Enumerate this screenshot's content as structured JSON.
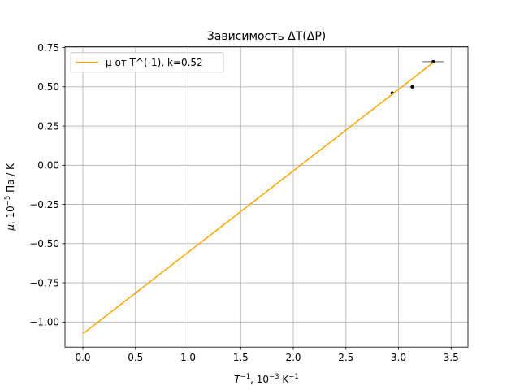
{
  "chart_data": {
    "type": "scatter",
    "title": "Зависимость ΔT(ΔP)",
    "xlabel": "",
    "ylabel": "",
    "xlabel_parts": {
      "t": "T",
      "t_sup": "−1",
      "mid": ", 10",
      "mid_sup": "−3",
      "unit": " K",
      "unit_sup": "−1"
    },
    "ylabel_parts": {
      "mu": "μ",
      "mid": ", 10",
      "mid_sup": "−5",
      "unit": " Па / K"
    },
    "xlim": [
      -0.17,
      3.66
    ],
    "ylim": [
      -1.16,
      0.755
    ],
    "grid": true,
    "legend_position": "top-left",
    "x_ticks": [
      {
        "value": 0.0,
        "label": "0.0"
      },
      {
        "value": 0.5,
        "label": "0.5"
      },
      {
        "value": 1.0,
        "label": "1.0"
      },
      {
        "value": 1.5,
        "label": "1.5"
      },
      {
        "value": 2.0,
        "label": "2.0"
      },
      {
        "value": 2.5,
        "label": "2.5"
      },
      {
        "value": 3.0,
        "label": "3.0"
      },
      {
        "value": 3.5,
        "label": "3.5"
      }
    ],
    "y_ticks": [
      {
        "value": 0.75,
        "label": "0.75"
      },
      {
        "value": 0.5,
        "label": "0.50"
      },
      {
        "value": 0.25,
        "label": "0.25"
      },
      {
        "value": 0.0,
        "label": "0.00"
      },
      {
        "value": -0.25,
        "label": "−0.25"
      },
      {
        "value": -0.5,
        "label": "−0.50"
      },
      {
        "value": -0.75,
        "label": "−0.75"
      },
      {
        "value": -1.0,
        "label": "−1.00"
      }
    ],
    "series": [
      {
        "name": "",
        "kind": "errorbar-points",
        "color": "#000000",
        "points": [
          {
            "x": 2.94,
            "y": 0.46,
            "xerr": 0.1,
            "yerr": 0.01
          },
          {
            "x": 3.13,
            "y": 0.5,
            "xerr": 0.01,
            "yerr": 0.015
          },
          {
            "x": 3.33,
            "y": 0.66,
            "xerr": 0.1,
            "yerr": 0.01
          }
        ]
      },
      {
        "name": "μ от T^(-1), k=0.52",
        "kind": "line",
        "color": "#ffa500",
        "x": [
          0.0,
          3.33
        ],
        "y": [
          -1.075,
          0.655
        ]
      }
    ]
  }
}
